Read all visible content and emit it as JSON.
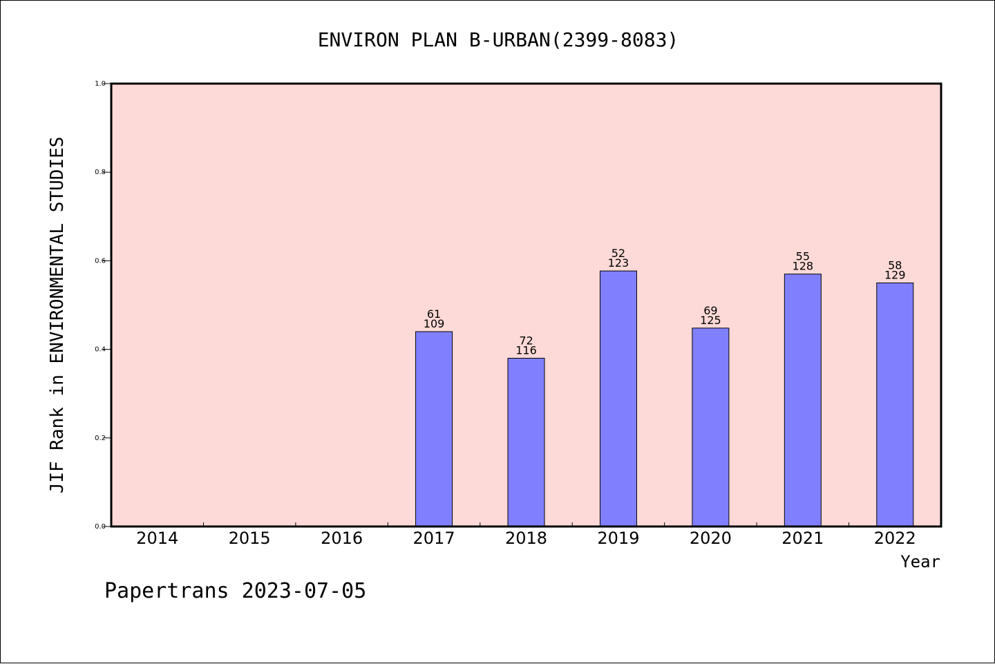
{
  "chart_data": {
    "type": "bar",
    "title": "ENVIRON PLAN B-URBAN(2399-8083)",
    "xlabel": "Year",
    "ylabel": "JIF Rank in ENVIRONMENTAL STUDIES",
    "categories": [
      "2014",
      "2015",
      "2016",
      "2017",
      "2018",
      "2019",
      "2020",
      "2021",
      "2022"
    ],
    "values": [
      null,
      null,
      null,
      0.44,
      0.38,
      0.577,
      0.448,
      0.57,
      0.55
    ],
    "rank": [
      null,
      null,
      null,
      "61",
      "72",
      "52",
      "69",
      "55",
      "58"
    ],
    "total": [
      null,
      null,
      null,
      "109",
      "116",
      "123",
      "125",
      "128",
      "129"
    ],
    "ylim": [
      0,
      1.0
    ],
    "yticks": [
      "0.0",
      "0.2",
      "0.4",
      "0.6",
      "0.8",
      "1.0"
    ],
    "grid": false,
    "legend": "none",
    "bar_color": "#8080ff",
    "plot_background": "#fddad7"
  },
  "footer": "Papertrans 2023-07-05"
}
